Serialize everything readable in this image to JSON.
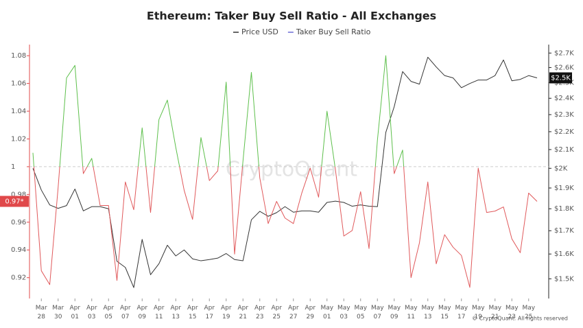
{
  "chart_data": {
    "type": "line",
    "title": "Ethereum: Taker Buy Sell Ratio - All Exchanges",
    "watermark": "CryptoQuant",
    "copyright": "© CryptoQuant. All rights reserved",
    "categories": [
      null,
      "Mar 28",
      null,
      "Mar 30",
      null,
      "Apr 01",
      null,
      "Apr 03",
      null,
      "Apr 05",
      null,
      "Apr 07",
      null,
      "Apr 09",
      null,
      "Apr 11",
      null,
      "Apr 13",
      null,
      "Apr 15",
      null,
      "Apr 17",
      null,
      "Apr 19",
      null,
      "Apr 21",
      null,
      "Apr 23",
      null,
      "Apr 25",
      null,
      "Apr 27",
      null,
      "Apr 29",
      null,
      "May 01",
      null,
      "May 03",
      null,
      "May 05",
      null,
      "May 07",
      null,
      "May 09",
      null,
      "May 11",
      null,
      "May 13",
      null,
      "May 15",
      null,
      "May 17",
      null,
      "May 19",
      null,
      "May 21",
      null,
      "May 23",
      null,
      "May 25",
      null
    ],
    "series": [
      {
        "name": "Price USD",
        "color": "#333333",
        "axis": "y2",
        "values": [
          2000,
          1890,
          1818,
          1802,
          1815,
          1895,
          1790,
          1810,
          1810,
          1800,
          1570,
          1545,
          1466,
          1662,
          1516,
          1560,
          1637,
          1592,
          1617,
          1580,
          1572,
          1577,
          1583,
          1602,
          1577,
          1572,
          1749,
          1788,
          1765,
          1782,
          1810,
          1784,
          1790,
          1790,
          1784,
          1830,
          1836,
          1830,
          1812,
          1818,
          1812,
          1810,
          2196,
          2348,
          2573,
          2508,
          2490,
          2671,
          2604,
          2546,
          2531,
          2467,
          2494,
          2517,
          2517,
          2546,
          2652,
          2512,
          2521,
          2546,
          2531
        ]
      },
      {
        "name": "Taker Buy Sell Ratio",
        "color": "#6b6bd6",
        "axis": "y",
        "threshold": 1,
        "color_above": "#5cbf4a",
        "color_below": "#e0585a",
        "values": [
          1.01,
          0.925,
          0.915,
          0.985,
          1.064,
          1.073,
          0.995,
          1.006,
          0.972,
          0.972,
          0.918,
          0.989,
          0.969,
          1.028,
          0.967,
          1.034,
          1.048,
          1.014,
          0.983,
          0.962,
          1.021,
          0.99,
          0.997,
          1.061,
          0.937,
          1.004,
          1.068,
          0.992,
          0.959,
          0.975,
          0.963,
          0.959,
          0.981,
          0.999,
          0.978,
          1.04,
          0.998,
          0.95,
          0.954,
          0.982,
          0.941,
          1.019,
          1.08,
          0.995,
          1.012,
          0.92,
          0.945,
          0.989,
          0.93,
          0.951,
          0.942,
          0.936,
          0.913,
          0.999,
          0.967,
          0.968,
          0.971,
          0.948,
          0.938,
          0.981,
          0.975
        ]
      }
    ],
    "ylim": [
      0.905,
      1.088
    ],
    "yticks": [
      {
        "value": 0.92,
        "label": "0.92"
      },
      {
        "value": 0.94,
        "label": "0.94"
      },
      {
        "value": 0.96,
        "label": "0.96"
      },
      {
        "value": 0.98,
        "label": "0.98"
      },
      1,
      {
        "value": 1.02,
        "label": "1.02"
      },
      {
        "value": 1.04,
        "label": "1.04"
      },
      {
        "value": 1.06,
        "label": "1.06"
      },
      {
        "value": 1.08,
        "label": "1.08"
      }
    ],
    "y2lim": [
      1425,
      2760
    ],
    "y2scale": "log",
    "y2ticks": [
      {
        "value": 1500,
        "label": "$1.5K"
      },
      {
        "value": 1600,
        "label": "$1.6K"
      },
      {
        "value": 1700,
        "label": "$1.7K"
      },
      {
        "value": 1800,
        "label": "$1.8K"
      },
      {
        "value": 1900,
        "label": "$1.9K"
      },
      {
        "value": 2000,
        "label": "$2K"
      },
      {
        "value": 2100,
        "label": "$2.1K"
      },
      {
        "value": 2200,
        "label": "$2.2K"
      },
      {
        "value": 2300,
        "label": "$2.3K"
      },
      {
        "value": 2400,
        "label": "$2.4K"
      },
      {
        "value": 2500,
        "label": "$2.5K"
      },
      {
        "value": 2600,
        "label": "$2.6K"
      },
      {
        "value": 2700,
        "label": "$2.7K"
      }
    ],
    "reference_line": 1,
    "annotations": [
      {
        "text": "0.97*",
        "axis": "y",
        "value": 0.975,
        "color": "#e0484a"
      },
      {
        "text": "$2.5K",
        "axis": "y2",
        "value": 2531,
        "color": "#111111"
      }
    ]
  }
}
